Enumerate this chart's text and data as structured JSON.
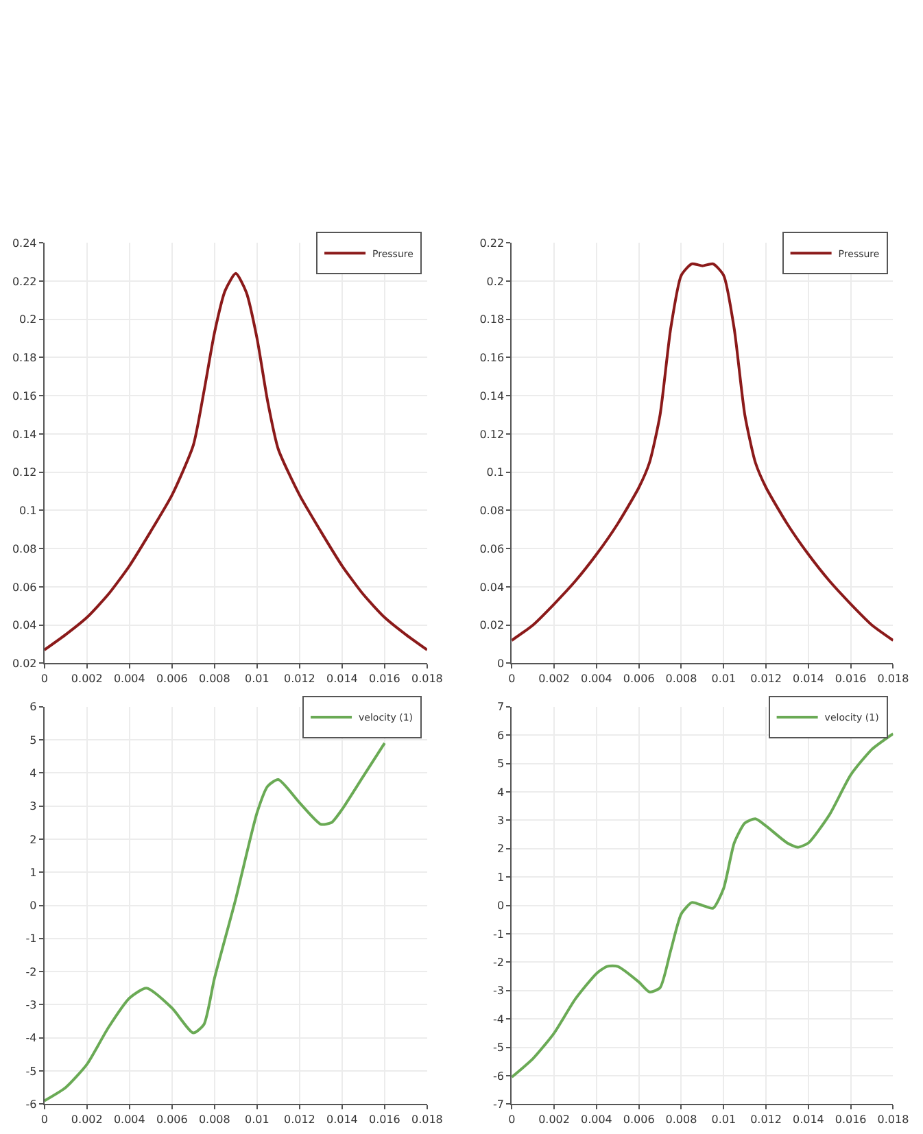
{
  "chart_data": [
    {
      "type": "line",
      "x": [
        0,
        0.001,
        0.002,
        0.003,
        0.004,
        0.005,
        0.006,
        0.007,
        0.0075,
        0.008,
        0.0085,
        0.009,
        0.0095,
        0.01,
        0.0105,
        0.011,
        0.012,
        0.013,
        0.014,
        0.015,
        0.016,
        0.017,
        0.018
      ],
      "series": [
        {
          "name": "Pressure",
          "color": "#8b1a1a",
          "values": [
            0.027,
            0.035,
            0.044,
            0.056,
            0.071,
            0.089,
            0.108,
            0.134,
            0.162,
            0.193,
            0.215,
            0.224,
            0.214,
            0.19,
            0.157,
            0.132,
            0.108,
            0.089,
            0.071,
            0.056,
            0.044,
            0.035,
            0.027
          ]
        }
      ],
      "xlim": [
        0,
        0.018
      ],
      "xticks": [
        0,
        0.002,
        0.004,
        0.006,
        0.008,
        0.01,
        0.012,
        0.014,
        0.016,
        0.018
      ],
      "ylim": [
        0.02,
        0.24
      ],
      "yticks": [
        0.02,
        0.04,
        0.06,
        0.08,
        0.1,
        0.12,
        0.14,
        0.16,
        0.18,
        0.2,
        0.22,
        0.24
      ],
      "grid": true,
      "legend": "top right",
      "marker": "none",
      "line_style": "solid"
    },
    {
      "type": "line",
      "x": [
        0,
        0.001,
        0.002,
        0.003,
        0.004,
        0.005,
        0.006,
        0.0065,
        0.007,
        0.0075,
        0.008,
        0.0085,
        0.009,
        0.0095,
        0.01,
        0.0105,
        0.011,
        0.0115,
        0.012,
        0.013,
        0.014,
        0.015,
        0.016,
        0.017,
        0.018
      ],
      "series": [
        {
          "name": "Pressure",
          "color": "#8b1a1a",
          "values": [
            0.012,
            0.02,
            0.031,
            0.043,
            0.057,
            0.073,
            0.092,
            0.105,
            0.13,
            0.175,
            0.203,
            0.209,
            0.208,
            0.209,
            0.203,
            0.175,
            0.13,
            0.105,
            0.092,
            0.073,
            0.057,
            0.043,
            0.031,
            0.02,
            0.012
          ]
        }
      ],
      "xlim": [
        0,
        0.018
      ],
      "xticks": [
        0,
        0.002,
        0.004,
        0.006,
        0.008,
        0.01,
        0.012,
        0.014,
        0.016,
        0.018
      ],
      "ylim": [
        0,
        0.22
      ],
      "yticks": [
        0,
        0.02,
        0.04,
        0.06,
        0.08,
        0.1,
        0.12,
        0.14,
        0.16,
        0.18,
        0.2,
        0.22
      ],
      "grid": true,
      "legend": "top right",
      "marker": "none",
      "line_style": "solid"
    },
    {
      "type": "line",
      "x": [
        0,
        0.001,
        0.002,
        0.003,
        0.004,
        0.0048,
        0.006,
        0.007,
        0.0075,
        0.008,
        0.009,
        0.01,
        0.0105,
        0.011,
        0.012,
        0.013,
        0.0135,
        0.014,
        0.015,
        0.016
      ],
      "series": [
        {
          "name": "velocity (1)",
          "color": "#6aaa55",
          "values": [
            -5.9,
            -5.5,
            -4.8,
            -3.7,
            -2.8,
            -2.5,
            -3.1,
            -3.85,
            -3.6,
            -2.2,
            0.2,
            2.8,
            3.6,
            3.8,
            3.1,
            2.45,
            2.5,
            2.9,
            3.9,
            4.9
          ]
        }
      ],
      "xlim": [
        0,
        0.018
      ],
      "xticks": [
        0,
        0.002,
        0.004,
        0.006,
        0.008,
        0.01,
        0.012,
        0.014,
        0.016,
        0.018
      ],
      "ylim": [
        -6,
        6
      ],
      "yticks": [
        -6,
        -5,
        -4,
        -3,
        -2,
        -1,
        0,
        1,
        2,
        3,
        4,
        5,
        6
      ],
      "grid": true,
      "legend": "top right",
      "marker": "none",
      "line_style": "solid"
    },
    {
      "type": "line",
      "x": [
        0,
        0.001,
        0.002,
        0.003,
        0.004,
        0.0045,
        0.005,
        0.006,
        0.0065,
        0.007,
        0.0075,
        0.008,
        0.0085,
        0.009,
        0.0095,
        0.01,
        0.0105,
        0.011,
        0.0115,
        0.012,
        0.013,
        0.0135,
        0.014,
        0.015,
        0.016,
        0.017,
        0.018
      ],
      "series": [
        {
          "name": "velocity (1)",
          "color": "#6aaa55",
          "values": [
            -6.05,
            -5.4,
            -4.5,
            -3.3,
            -2.4,
            -2.15,
            -2.15,
            -2.7,
            -3.05,
            -2.9,
            -1.6,
            -0.3,
            0.1,
            0.0,
            -0.1,
            0.6,
            2.2,
            2.9,
            3.05,
            2.8,
            2.2,
            2.05,
            2.2,
            3.2,
            4.6,
            5.5,
            6.05
          ]
        }
      ],
      "xlim": [
        0,
        0.018
      ],
      "xticks": [
        0,
        0.002,
        0.004,
        0.006,
        0.008,
        0.01,
        0.012,
        0.014,
        0.016,
        0.018
      ],
      "ylim": [
        -7,
        7
      ],
      "yticks": [
        -7,
        -6,
        -5,
        -4,
        -3,
        -2,
        -1,
        0,
        1,
        2,
        3,
        4,
        5,
        6,
        7
      ],
      "grid": true,
      "legend": "top right",
      "marker": "none",
      "line_style": "solid"
    }
  ]
}
